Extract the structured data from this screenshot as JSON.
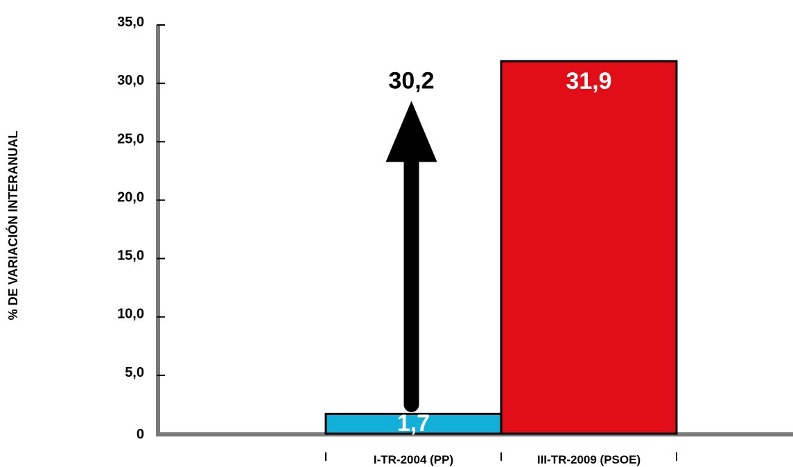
{
  "chart_data": {
    "type": "bar",
    "categories": [
      "I-TR-2004 (PP)",
      "III-TR-2009 (PSOE)"
    ],
    "values": [
      1.7,
      31.9
    ],
    "value_labels": [
      "1,7",
      "31,9"
    ],
    "bar_colors": [
      "#12b0d8",
      "#e20e17"
    ],
    "value_label_colors": [
      "#ffffff",
      "#ffffff"
    ],
    "ylabel": "% DE VARIACIÓN INTERANUAL",
    "ylim": [
      0,
      35
    ],
    "yticks": [
      0,
      5,
      10,
      15,
      20,
      25,
      30,
      35
    ],
    "ytick_labels": [
      "0",
      "5,0",
      "10,0",
      "15,0",
      "20,0",
      "25,0",
      "30,0",
      "35,0"
    ],
    "grid": false,
    "axis_color": "#7a7a7a",
    "annotation": {
      "text": "30,2",
      "type": "up-arrow",
      "from_value": 2.5,
      "to_value": 28.5,
      "color": "#000000"
    }
  }
}
